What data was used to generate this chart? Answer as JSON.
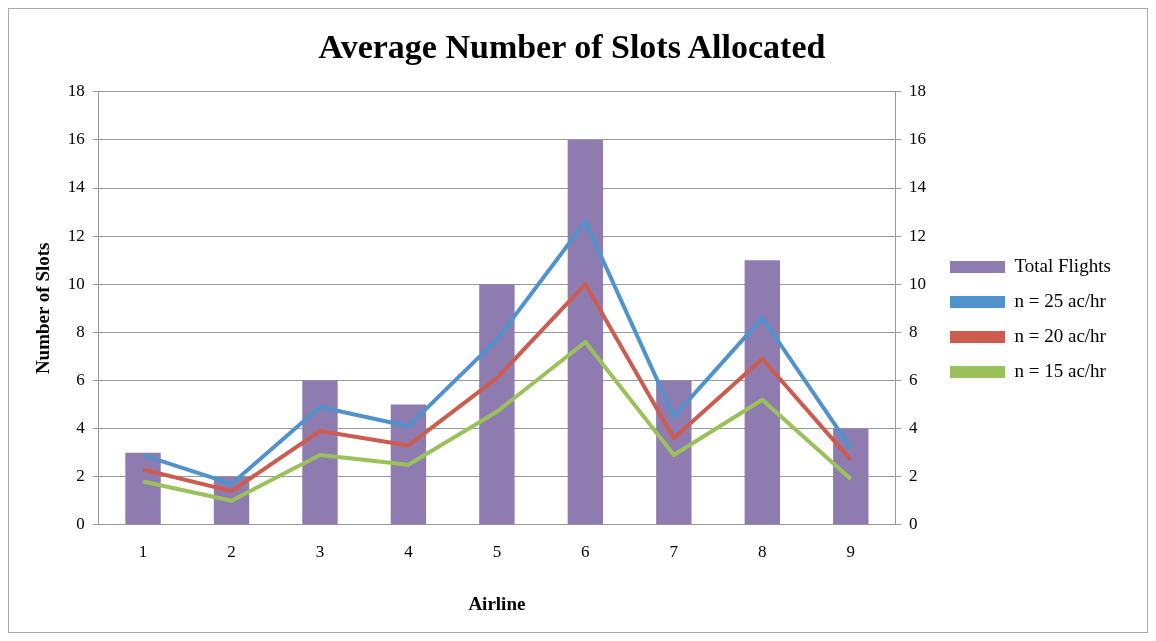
{
  "chart_data": {
    "type": "bar",
    "title": "Average Number of Slots Allocated",
    "xlabel": "Airline",
    "ylabel": "Number of Slots",
    "categories": [
      "1",
      "2",
      "3",
      "4",
      "5",
      "6",
      "7",
      "8",
      "9"
    ],
    "series": [
      {
        "name": "Total Flights",
        "color": "#8e7cb0",
        "values": [
          3,
          2,
          6,
          5,
          10,
          16,
          6,
          11,
          4
        ]
      },
      {
        "name": "n = 25 ac/hr",
        "type": "line",
        "color": "#5093cc",
        "values": [
          2.9,
          1.7,
          4.9,
          4.1,
          7.7,
          12.6,
          4.5,
          8.6,
          3.2
        ]
      },
      {
        "name": "n = 20 ac/hr",
        "type": "line",
        "color": "#cc5c4f",
        "values": [
          2.3,
          1.4,
          3.9,
          3.3,
          6.1,
          10.0,
          3.6,
          6.9,
          2.7
        ]
      },
      {
        "name": "n = 15 ac/hr",
        "type": "line",
        "color": "#9bc15a",
        "values": [
          1.8,
          1.0,
          2.9,
          2.5,
          4.7,
          7.6,
          2.9,
          5.2,
          1.9
        ]
      }
    ],
    "ylim": [
      0,
      18
    ],
    "yticks": [
      0,
      2,
      4,
      6,
      8,
      10,
      12,
      14,
      16,
      18
    ],
    "y2lim": [
      0,
      18
    ],
    "y2ticks": [
      0,
      2,
      4,
      6,
      8,
      10,
      12,
      14,
      16,
      18
    ],
    "grid": "y",
    "legend": "right",
    "marker": "none",
    "line_style": "solid"
  }
}
